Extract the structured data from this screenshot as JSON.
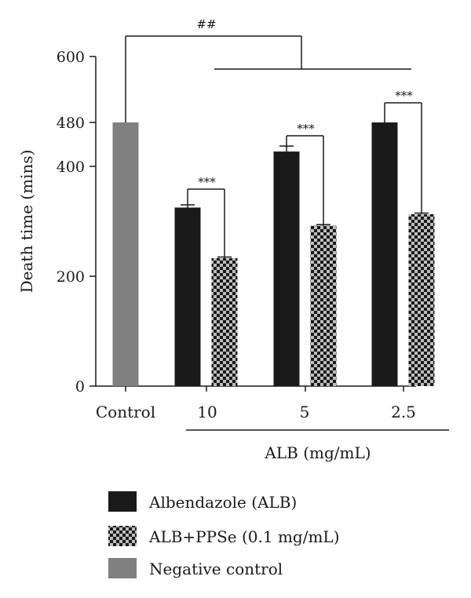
{
  "chart_data": {
    "type": "bar",
    "ylabel": "Death time (mins)",
    "xlabel": "ALB (mg/mL)",
    "ylim": [
      0,
      600
    ],
    "yticks": [
      "0",
      "200",
      "400",
      "480",
      "600"
    ],
    "grid": false,
    "categories": [
      "Control",
      "10",
      "5",
      "2.5"
    ],
    "series": [
      {
        "name": "Negative control",
        "color": "#808080",
        "pattern": "solid",
        "values": [
          480,
          null,
          null,
          null
        ],
        "errors": [
          0,
          null,
          null,
          null
        ]
      },
      {
        "name": "Albendazole (ALB)",
        "color": "#1a1a1a",
        "pattern": "solid",
        "values": [
          null,
          325,
          427,
          480
        ],
        "errors": [
          null,
          5,
          10,
          0
        ]
      },
      {
        "name": "ALB+PPSe (0.1 mg/mL)",
        "color": "#1a1a1a",
        "pattern": "checkered",
        "values": [
          null,
          233,
          292,
          313
        ],
        "errors": [
          null,
          2,
          2,
          2
        ]
      }
    ],
    "significance": [
      {
        "label": "##",
        "comparison": "Control vs all ALB groups"
      },
      {
        "label": "***",
        "comparison": "ALB vs ALB+PPSe at 10"
      },
      {
        "label": "***",
        "comparison": "ALB vs ALB+PPSe at 5"
      },
      {
        "label": "***",
        "comparison": "ALB vs ALB+PPSe at 2.5"
      }
    ],
    "legend_position": "bottom"
  }
}
